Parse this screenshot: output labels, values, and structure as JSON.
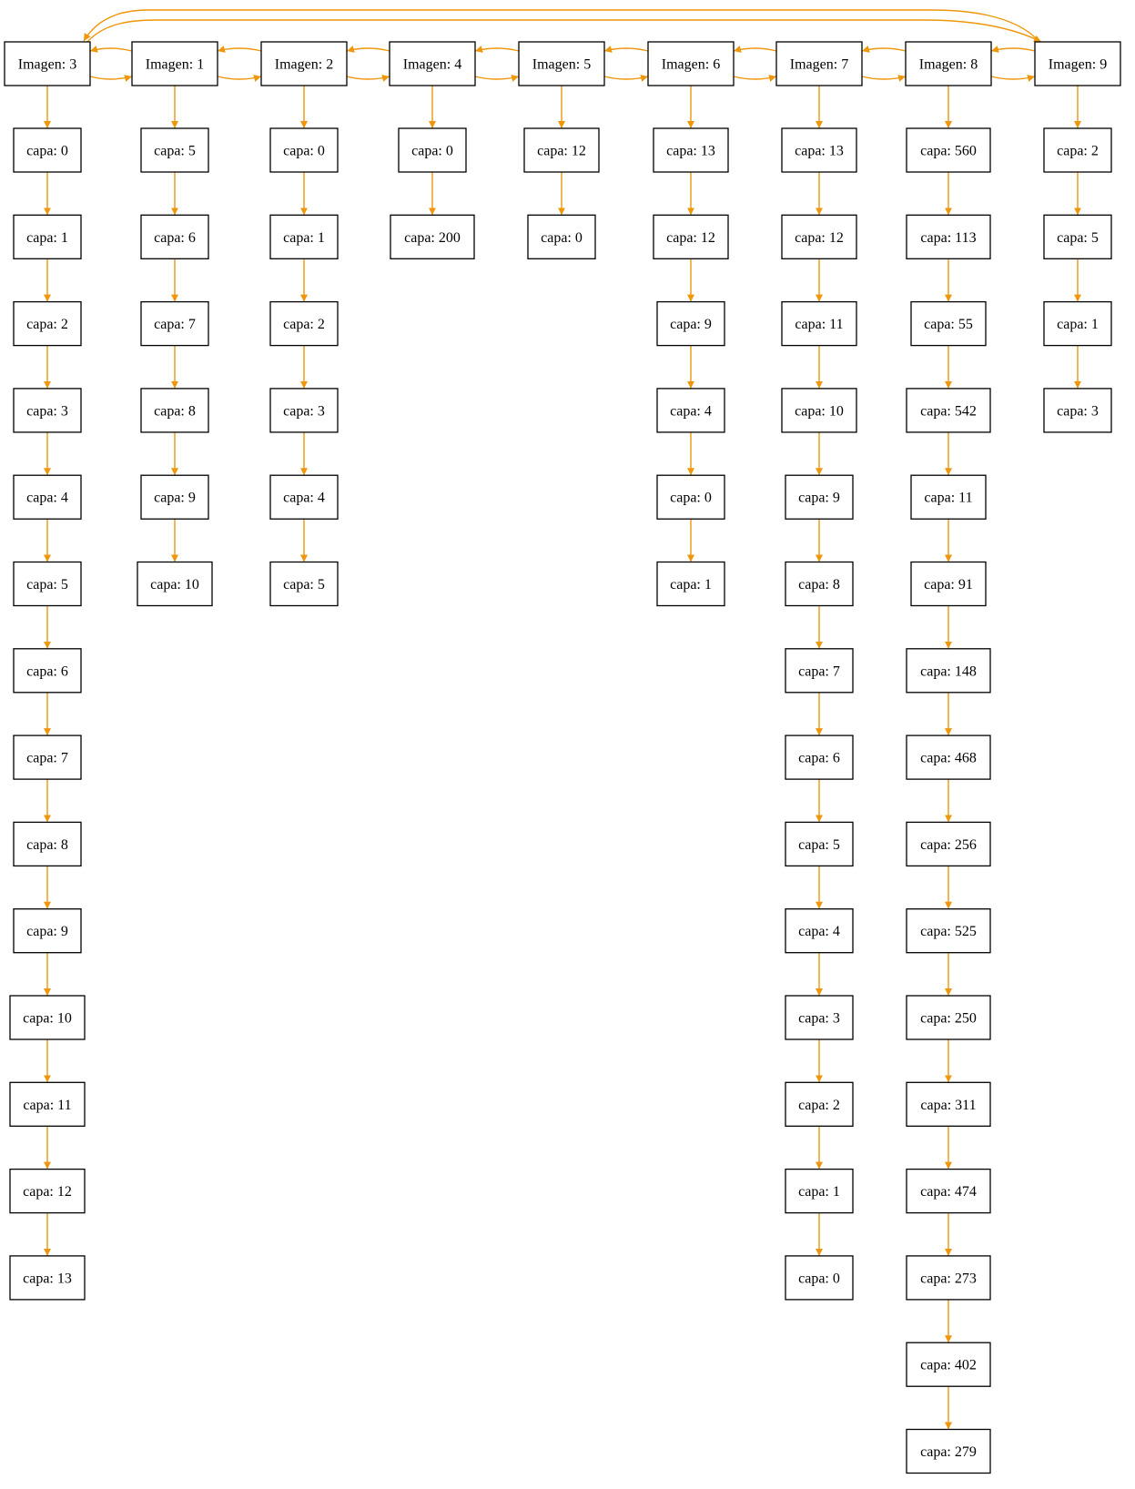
{
  "edge_color": "#f0960a",
  "node_border_color": "#000000",
  "images": [
    {
      "label": "Imagen: 3",
      "capas": [
        "capa: 0",
        "capa: 1",
        "capa: 2",
        "capa: 3",
        "capa: 4",
        "capa: 5",
        "capa: 6",
        "capa: 7",
        "capa: 8",
        "capa: 9",
        "capa: 10",
        "capa: 11",
        "capa: 12",
        "capa: 13"
      ]
    },
    {
      "label": "Imagen: 1",
      "capas": [
        "capa: 5",
        "capa: 6",
        "capa: 7",
        "capa: 8",
        "capa: 9",
        "capa: 10"
      ]
    },
    {
      "label": "Imagen: 2",
      "capas": [
        "capa: 0",
        "capa: 1",
        "capa: 2",
        "capa: 3",
        "capa: 4",
        "capa: 5"
      ]
    },
    {
      "label": "Imagen: 4",
      "capas": [
        "capa: 0",
        "capa: 200"
      ]
    },
    {
      "label": "Imagen: 5",
      "capas": [
        "capa: 12",
        "capa: 0"
      ]
    },
    {
      "label": "Imagen: 6",
      "capas": [
        "capa: 13",
        "capa: 12",
        "capa: 9",
        "capa: 4",
        "capa: 0",
        "capa: 1"
      ]
    },
    {
      "label": "Imagen: 7",
      "capas": [
        "capa: 13",
        "capa: 12",
        "capa: 11",
        "capa: 10",
        "capa: 9",
        "capa: 8",
        "capa: 7",
        "capa: 6",
        "capa: 5",
        "capa: 4",
        "capa: 3",
        "capa: 2",
        "capa: 1",
        "capa: 0"
      ]
    },
    {
      "label": "Imagen: 8",
      "capas": [
        "capa: 560",
        "capa: 113",
        "capa: 55",
        "capa: 542",
        "capa: 11",
        "capa: 91",
        "capa: 148",
        "capa: 468",
        "capa: 256",
        "capa: 525",
        "capa: 250",
        "capa: 311",
        "capa: 474",
        "capa: 273",
        "capa: 402",
        "capa: 279"
      ]
    },
    {
      "label": "Imagen: 9",
      "capas": [
        "capa: 2",
        "capa: 5",
        "capa: 1",
        "capa: 3"
      ]
    }
  ]
}
